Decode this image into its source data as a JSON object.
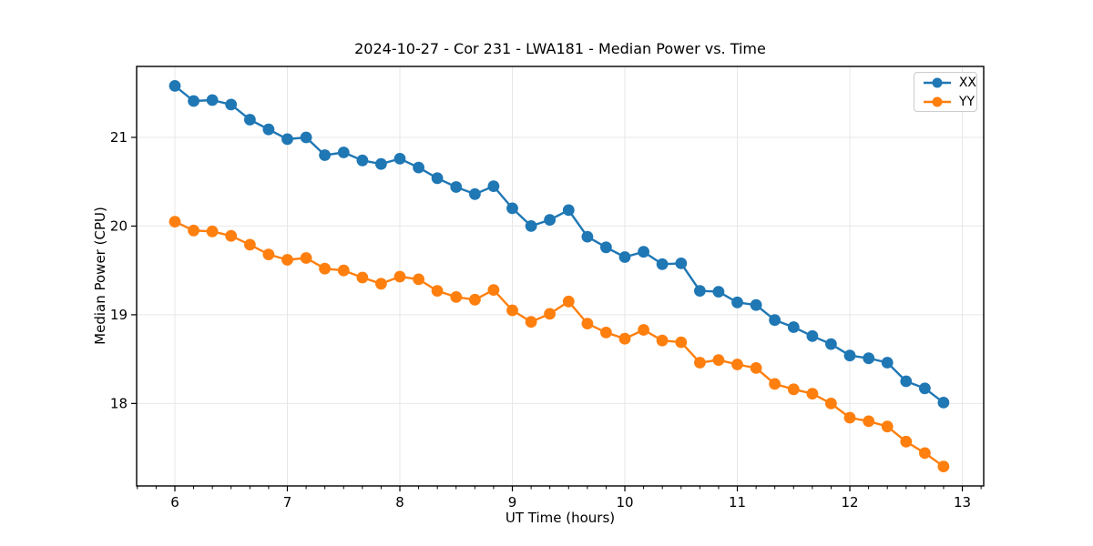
{
  "chart_data": {
    "type": "line",
    "title": "2024-10-27 - Cor 231 - LWA181 - Median Power vs. Time",
    "xlabel": "UT Time (hours)",
    "ylabel": "Median Power (CPU)",
    "xlim": [
      5.66,
      13.19
    ],
    "ylim": [
      17.07,
      21.8
    ],
    "x_ticks": [
      6,
      7,
      8,
      9,
      10,
      11,
      12,
      13
    ],
    "y_ticks": [
      18,
      19,
      20,
      21
    ],
    "x_minor_tick_step": 0.166667,
    "grid": true,
    "grid_color": "#e7e7e7",
    "legend_position": "upper right",
    "x": [
      6.0,
      6.167,
      6.333,
      6.5,
      6.667,
      6.833,
      7.0,
      7.167,
      7.333,
      7.5,
      7.667,
      7.833,
      8.0,
      8.167,
      8.333,
      8.5,
      8.667,
      8.833,
      9.0,
      9.167,
      9.333,
      9.5,
      9.667,
      9.833,
      10.0,
      10.167,
      10.333,
      10.5,
      10.667,
      10.833,
      11.0,
      11.167,
      11.333,
      11.5,
      11.667,
      11.833,
      12.0,
      12.167,
      12.333,
      12.5,
      12.667,
      12.833
    ],
    "series": [
      {
        "name": "XX",
        "color": "#1f77b4",
        "values": [
          21.58,
          21.41,
          21.42,
          21.37,
          21.2,
          21.09,
          20.98,
          21.0,
          20.8,
          20.83,
          20.74,
          20.7,
          20.76,
          20.66,
          20.54,
          20.44,
          20.36,
          20.45,
          20.2,
          20.0,
          20.07,
          20.18,
          19.88,
          19.76,
          19.65,
          19.71,
          19.57,
          19.58,
          19.27,
          19.26,
          19.14,
          19.11,
          18.94,
          18.86,
          18.76,
          18.67,
          18.54,
          18.51,
          18.46,
          18.25,
          18.17,
          18.01
        ]
      },
      {
        "name": "YY",
        "color": "#ff7f0e",
        "values": [
          20.05,
          19.95,
          19.94,
          19.89,
          19.79,
          19.68,
          19.62,
          19.64,
          19.52,
          19.5,
          19.42,
          19.35,
          19.43,
          19.4,
          19.27,
          19.2,
          19.17,
          19.28,
          19.05,
          18.92,
          19.01,
          19.15,
          18.9,
          18.8,
          18.73,
          18.83,
          18.71,
          18.69,
          18.46,
          18.49,
          18.44,
          18.4,
          18.22,
          18.16,
          18.11,
          18.0,
          17.84,
          17.8,
          17.74,
          17.57,
          17.44,
          17.29
        ]
      }
    ]
  }
}
